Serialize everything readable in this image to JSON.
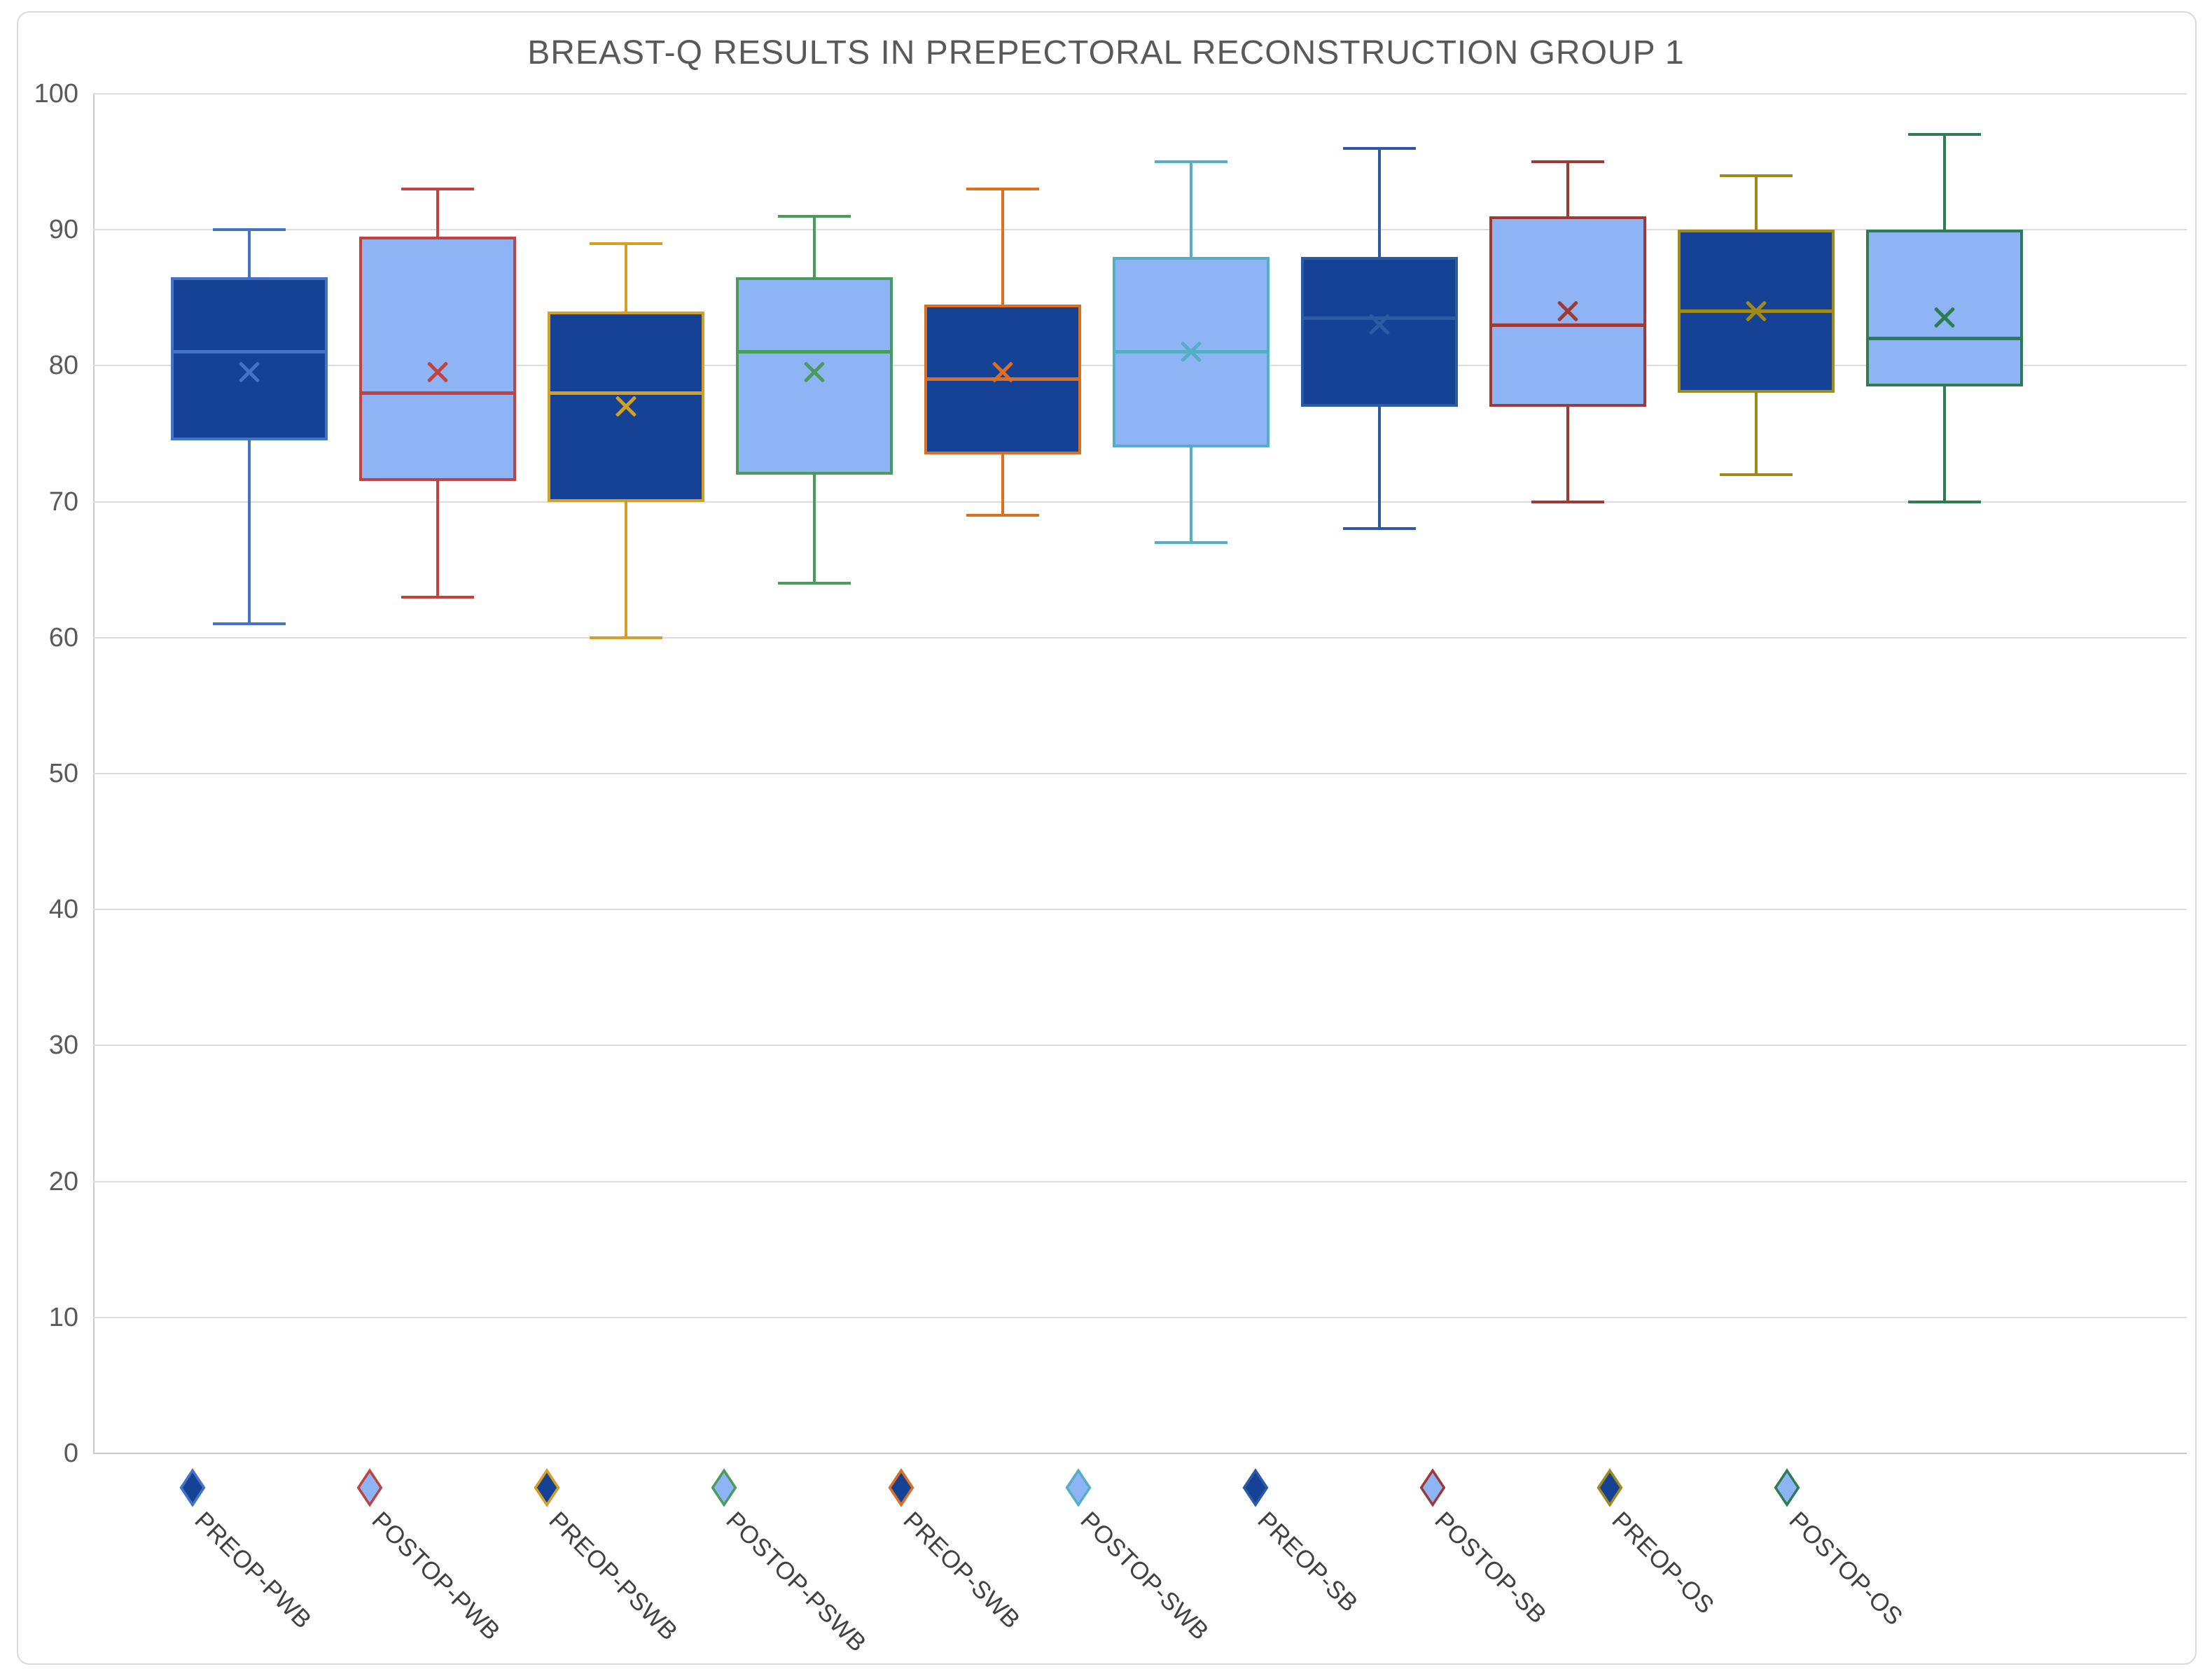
{
  "chart_data": {
    "type": "box",
    "title": "BREAST-Q RESULTS IN PREPECTORAL RECONSTRUCTION GROUP 1",
    "xlabel": "",
    "ylabel": "",
    "ylim": [
      0,
      100
    ],
    "yticks": [
      0,
      10,
      20,
      30,
      40,
      50,
      60,
      70,
      80,
      90,
      100
    ],
    "grid": "horizontal",
    "legend_position": "bottom",
    "marker_shape": "diamond",
    "mean_marker": "x-cross",
    "series": [
      {
        "name": "PREOP-PWB",
        "fill": "#154295",
        "accent": "#4472c4",
        "whisker_low": 61,
        "q1": 74.5,
        "median": 81,
        "mean": 79.5,
        "q3": 86.5,
        "whisker_high": 90
      },
      {
        "name": "POSTOP-PWB",
        "fill": "#8fb4f6",
        "accent": "#c0433f",
        "whisker_low": 63,
        "q1": 71.5,
        "median": 78,
        "mean": 79.5,
        "q3": 89.5,
        "whisker_high": 93
      },
      {
        "name": "PREOP-PSWB",
        "fill": "#154295",
        "accent": "#d5a021",
        "whisker_low": 60,
        "q1": 70,
        "median": 78,
        "mean": 77,
        "q3": 84,
        "whisker_high": 89
      },
      {
        "name": "POSTOP-PSWB",
        "fill": "#8fb4f6",
        "accent": "#4a9c5d",
        "whisker_low": 64,
        "q1": 72,
        "median": 81,
        "mean": 79.5,
        "q3": 86.5,
        "whisker_high": 91
      },
      {
        "name": "PREOP-SWB",
        "fill": "#154295",
        "accent": "#de6f1e",
        "whisker_low": 69,
        "q1": 73.5,
        "median": 79,
        "mean": 79.5,
        "q3": 84.5,
        "whisker_high": 93
      },
      {
        "name": "POSTOP-SWB",
        "fill": "#8fb4f6",
        "accent": "#54afc4",
        "whisker_low": 67,
        "q1": 74,
        "median": 81,
        "mean": 81,
        "q3": 88,
        "whisker_high": 95
      },
      {
        "name": "PREOP-SB",
        "fill": "#154295",
        "accent": "#2c5aa5",
        "whisker_low": 68,
        "q1": 77,
        "median": 83.5,
        "mean": 83,
        "q3": 88,
        "whisker_high": 96
      },
      {
        "name": "POSTOP-SB",
        "fill": "#8fb4f6",
        "accent": "#9e3a34",
        "whisker_low": 70,
        "q1": 77,
        "median": 83,
        "mean": 84,
        "q3": 91,
        "whisker_high": 95
      },
      {
        "name": "PREOP-OS",
        "fill": "#154295",
        "accent": "#a18917",
        "whisker_low": 72,
        "q1": 78,
        "median": 84,
        "mean": 84,
        "q3": 90,
        "whisker_high": 94
      },
      {
        "name": "POSTOP-OS",
        "fill": "#8fb4f6",
        "accent": "#2e7c4f",
        "whisker_low": 70,
        "q1": 78.5,
        "median": 82,
        "mean": 83.5,
        "q3": 90,
        "whisker_high": 97
      }
    ]
  },
  "style_colors": {
    "title_text": "#595959",
    "axis_tick_text": "#595959",
    "legend_text": "#404040",
    "gridline": "#dcdcdc",
    "axis_line": "#c9c9c9",
    "frame_border": "#d9d9d9",
    "background": "#ffffff"
  }
}
